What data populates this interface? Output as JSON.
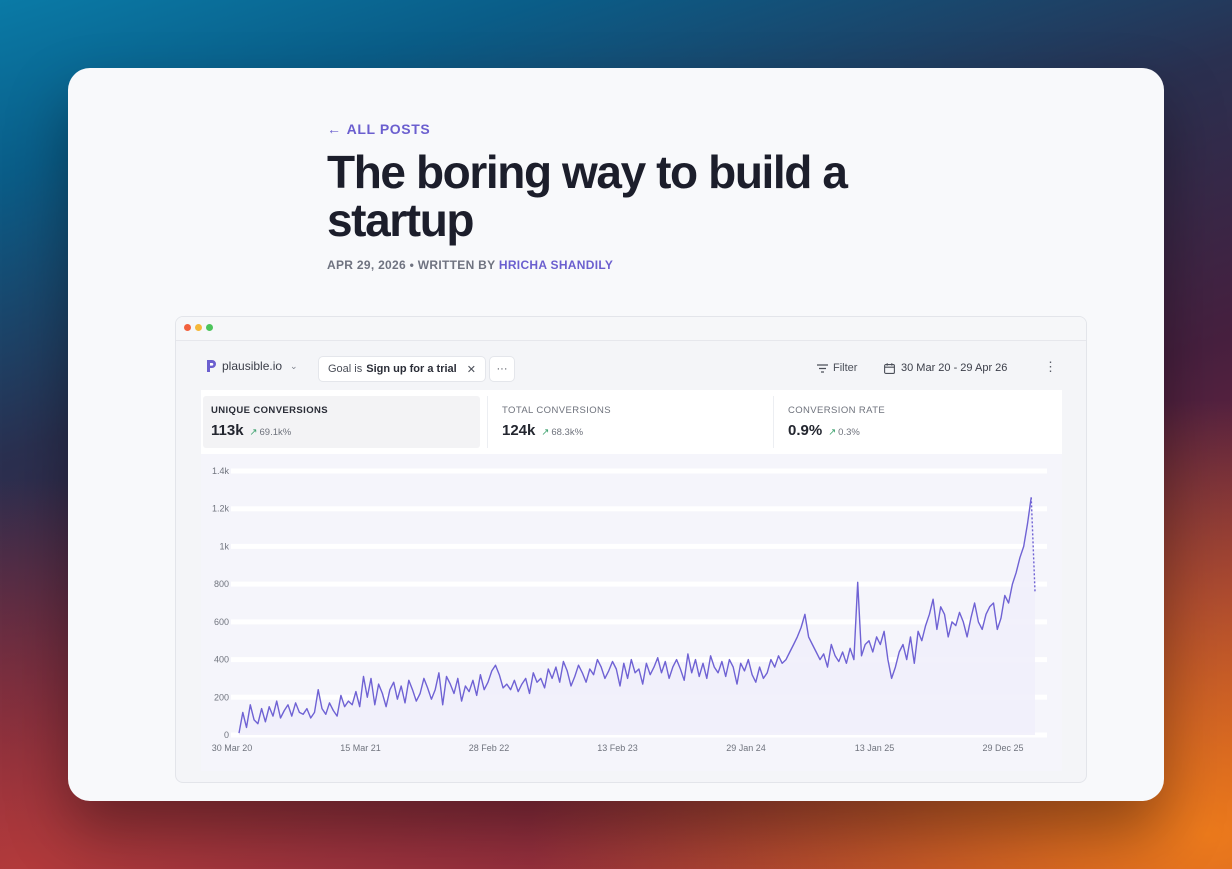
{
  "post": {
    "back_label": "ALL POSTS",
    "title": "The boring way to build a startup",
    "date": "APR 29, 2026",
    "separator": "•",
    "written_by": "WRITTEN BY",
    "author": "HRICHA SHANDILY"
  },
  "dashboard": {
    "site_name": "plausible.io",
    "filter_chip": {
      "prefix": "Goal is",
      "value": "Sign up for a trial"
    },
    "more_label": "···",
    "filter_label": "Filter",
    "date_range": "30 Mar 20 - 29 Apr 26",
    "metrics": [
      {
        "label": "UNIQUE CONVERSIONS",
        "value": "113k",
        "change": "69.1k%"
      },
      {
        "label": "TOTAL CONVERSIONS",
        "value": "124k",
        "change": "68.3k%"
      },
      {
        "label": "CONVERSION RATE",
        "value": "0.9%",
        "change": "0.3%"
      }
    ],
    "colors": {
      "accent": "#6b5fcf",
      "line": "#6f62d4",
      "fill": "#f1f0fb",
      "up_arrow": "#3aa06b"
    }
  },
  "chart_data": {
    "type": "line",
    "title": "",
    "xlabel": "",
    "ylabel": "",
    "ylim": [
      0,
      1400
    ],
    "yticks": [
      0,
      200,
      400,
      600,
      800,
      1000,
      1200,
      1400
    ],
    "ytick_labels": [
      "0",
      "200",
      "400",
      "600",
      "800",
      "1k",
      "1.2k",
      "1.4k"
    ],
    "xtick_labels": [
      "30 Mar 20",
      "15 Mar 21",
      "28 Feb 22",
      "13 Feb 23",
      "29 Jan 24",
      "13 Jan 25",
      "29 Dec 25"
    ],
    "grid": true,
    "legend": "none",
    "series": [
      {
        "values": [
          10,
          120,
          40,
          160,
          80,
          60,
          140,
          70,
          150,
          100,
          180,
          90,
          130,
          160,
          100,
          170,
          120,
          110,
          140,
          90,
          120,
          240,
          140,
          110,
          170,
          130,
          100,
          210,
          150,
          180,
          160,
          230,
          150,
          310,
          200,
          300,
          160,
          270,
          220,
          150,
          240,
          280,
          190,
          260,
          170,
          290,
          240,
          180,
          220,
          300,
          250,
          190,
          240,
          330,
          160,
          310,
          270,
          220,
          300,
          180,
          260,
          230,
          290,
          210,
          320,
          240,
          280,
          340,
          370,
          320,
          250,
          270,
          240,
          290,
          230,
          270,
          300,
          220,
          330,
          280,
          300,
          250,
          350,
          300,
          360,
          280,
          390,
          340,
          260,
          310,
          370,
          330,
          280,
          350,
          320,
          400,
          360,
          300,
          340,
          390,
          350,
          260,
          380,
          300,
          400,
          330,
          350,
          270,
          380,
          320,
          360,
          410,
          330,
          390,
          300,
          360,
          400,
          350,
          290,
          430,
          330,
          400,
          310,
          380,
          300,
          420,
          360,
          330,
          390,
          310,
          400,
          360,
          270,
          380,
          340,
          400,
          320,
          280,
          360,
          300,
          330,
          400,
          360,
          420,
          380,
          400,
          440,
          480,
          520,
          570,
          640,
          520,
          480,
          440,
          400,
          430,
          360,
          480,
          420,
          390,
          440,
          380,
          460,
          400,
          810,
          420,
          480,
          500,
          440,
          520,
          480,
          550,
          400,
          300,
          360,
          440,
          480,
          400,
          520,
          380,
          550,
          500,
          580,
          640,
          720,
          560,
          680,
          640,
          520,
          600,
          580,
          650,
          600,
          520,
          620,
          700,
          600,
          560,
          640,
          680,
          700,
          560,
          620,
          740,
          700,
          800,
          860,
          940,
          1000,
          1120,
          1260,
          760
        ]
      }
    ]
  }
}
